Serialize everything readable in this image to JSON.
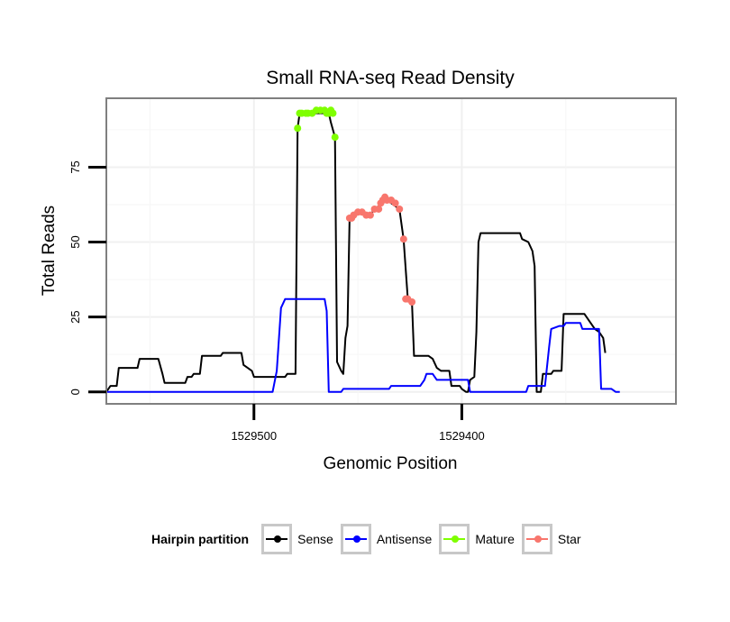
{
  "chart_data": {
    "type": "line",
    "title": "Small RNA-seq Read Density",
    "xlabel": "Genomic Position",
    "ylabel": "Total Reads",
    "x_reversed": true,
    "xlim": [
      1529571,
      1529297
    ],
    "ylim": [
      -4,
      98
    ],
    "xticks": [
      1529500,
      1529400
    ],
    "xtick_labels": [
      "1529500",
      "1529400"
    ],
    "yticks": [
      0,
      25,
      50,
      75
    ],
    "ytick_labels": [
      "0",
      "25",
      "50",
      "75"
    ],
    "legend": {
      "title": "Hairpin partition",
      "position": "bottom",
      "entries": [
        "Sense",
        "Antisense",
        "Mature",
        "Star"
      ]
    },
    "series": [
      {
        "name": "Sense",
        "color": "#000000",
        "style": "line",
        "points": [
          [
            1529571,
            0
          ],
          [
            1529569,
            2
          ],
          [
            1529566,
            2
          ],
          [
            1529565,
            8
          ],
          [
            1529556,
            8
          ],
          [
            1529555,
            11
          ],
          [
            1529546,
            11
          ],
          [
            1529544,
            6
          ],
          [
            1529543,
            3
          ],
          [
            1529533,
            3
          ],
          [
            1529532,
            5
          ],
          [
            1529530,
            5
          ],
          [
            1529529,
            6
          ],
          [
            1529526,
            6
          ],
          [
            1529525,
            12
          ],
          [
            1529516,
            12
          ],
          [
            1529515,
            13
          ],
          [
            1529506,
            13
          ],
          [
            1529505,
            9
          ],
          [
            1529503,
            8
          ],
          [
            1529501,
            7
          ],
          [
            1529500,
            5
          ],
          [
            1529485,
            5
          ],
          [
            1529484,
            6
          ],
          [
            1529480,
            6
          ],
          [
            1529479,
            88
          ],
          [
            1529478,
            93
          ],
          [
            1529464,
            93
          ],
          [
            1529463,
            90
          ],
          [
            1529461,
            85
          ],
          [
            1529460,
            10
          ],
          [
            1529458,
            7
          ],
          [
            1529457,
            6
          ],
          [
            1529456,
            18
          ],
          [
            1529455,
            22
          ],
          [
            1529454,
            58
          ],
          [
            1529452,
            58
          ],
          [
            1529450,
            60
          ],
          [
            1529444,
            59
          ],
          [
            1529442,
            61
          ],
          [
            1529438,
            63
          ],
          [
            1529436,
            64
          ],
          [
            1529430,
            61
          ],
          [
            1529428,
            51
          ],
          [
            1529426,
            31
          ],
          [
            1529424,
            30
          ],
          [
            1529423,
            12
          ],
          [
            1529416,
            12
          ],
          [
            1529414,
            11
          ],
          [
            1529412,
            8
          ],
          [
            1529410,
            7
          ],
          [
            1529406,
            7
          ],
          [
            1529405,
            2
          ],
          [
            1529401,
            2
          ],
          [
            1529400,
            1
          ],
          [
            1529398,
            0
          ],
          [
            1529397,
            0
          ],
          [
            1529396,
            4
          ],
          [
            1529394,
            5
          ],
          [
            1529393,
            20
          ],
          [
            1529392,
            50
          ],
          [
            1529391,
            53
          ],
          [
            1529372,
            53
          ],
          [
            1529371,
            51
          ],
          [
            1529368,
            50
          ],
          [
            1529366,
            47
          ],
          [
            1529365,
            42
          ],
          [
            1529364,
            0
          ],
          [
            1529362,
            0
          ],
          [
            1529361,
            6
          ],
          [
            1529357,
            6
          ],
          [
            1529356,
            7
          ],
          [
            1529352,
            7
          ],
          [
            1529351,
            26
          ],
          [
            1529341,
            26
          ],
          [
            1529338,
            23
          ],
          [
            1529336,
            21
          ],
          [
            1529334,
            20
          ],
          [
            1529332,
            18
          ],
          [
            1529331,
            13
          ]
        ]
      },
      {
        "name": "Antisense",
        "color": "#0000ff",
        "style": "line",
        "points": [
          [
            1529571,
            0
          ],
          [
            1529491,
            0
          ],
          [
            1529489,
            7
          ],
          [
            1529487,
            28
          ],
          [
            1529485,
            31
          ],
          [
            1529466,
            31
          ],
          [
            1529465,
            27
          ],
          [
            1529464,
            0
          ],
          [
            1529458,
            0
          ],
          [
            1529457,
            1
          ],
          [
            1529435,
            1
          ],
          [
            1529434,
            2
          ],
          [
            1529420,
            2
          ],
          [
            1529418,
            4
          ],
          [
            1529417,
            6
          ],
          [
            1529414,
            6
          ],
          [
            1529412,
            4
          ],
          [
            1529397,
            4
          ],
          [
            1529396,
            0
          ],
          [
            1529369,
            0
          ],
          [
            1529368,
            2
          ],
          [
            1529360,
            2
          ],
          [
            1529358,
            15
          ],
          [
            1529357,
            21
          ],
          [
            1529353,
            22
          ],
          [
            1529351,
            22
          ],
          [
            1529350,
            23
          ],
          [
            1529343,
            23
          ],
          [
            1529342,
            21
          ],
          [
            1529334,
            21
          ],
          [
            1529333,
            1
          ],
          [
            1529328,
            1
          ],
          [
            1529326,
            0
          ],
          [
            1529324,
            0
          ]
        ]
      },
      {
        "name": "Mature",
        "color": "#7fff00",
        "style": "points",
        "points": [
          [
            1529479,
            88
          ],
          [
            1529478,
            93
          ],
          [
            1529477,
            93
          ],
          [
            1529475,
            93
          ],
          [
            1529474,
            93
          ],
          [
            1529472,
            93
          ],
          [
            1529470,
            94
          ],
          [
            1529468,
            94
          ],
          [
            1529466,
            94
          ],
          [
            1529465,
            93
          ],
          [
            1529464,
            93
          ],
          [
            1529463,
            94
          ],
          [
            1529462,
            93
          ],
          [
            1529461,
            85
          ]
        ]
      },
      {
        "name": "Star",
        "color": "#f8766d",
        "style": "points",
        "points": [
          [
            1529454,
            58
          ],
          [
            1529453,
            58
          ],
          [
            1529452,
            59
          ],
          [
            1529450,
            60
          ],
          [
            1529448,
            60
          ],
          [
            1529446,
            59
          ],
          [
            1529444,
            59
          ],
          [
            1529442,
            61
          ],
          [
            1529440,
            61
          ],
          [
            1529439,
            63
          ],
          [
            1529438,
            64
          ],
          [
            1529437,
            65
          ],
          [
            1529436,
            64
          ],
          [
            1529434,
            64
          ],
          [
            1529432,
            63
          ],
          [
            1529430,
            61
          ],
          [
            1529428,
            51
          ],
          [
            1529427,
            31
          ],
          [
            1529426,
            31
          ],
          [
            1529424,
            30
          ]
        ]
      }
    ]
  }
}
